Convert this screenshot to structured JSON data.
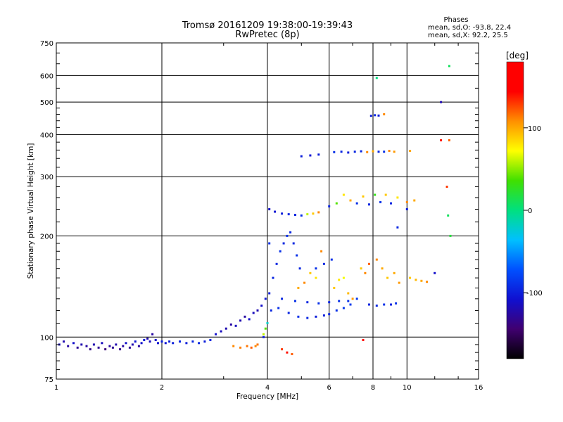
{
  "chart_data": {
    "type": "scatter",
    "title": "Tromsø 20161209 19:38:00-19:39:43",
    "subtitle": "RwPretec (8p)",
    "xlabel": "Frequency [MHz]",
    "ylabel": "Stationary phase Virtual Height [km]",
    "x_scale": "log",
    "y_scale": "log",
    "xlim": [
      1,
      16
    ],
    "ylim": [
      75,
      750
    ],
    "x_ticks": [
      1,
      2,
      4,
      6,
      8,
      10,
      16
    ],
    "y_ticks": [
      75,
      100,
      200,
      300,
      400,
      500,
      600,
      750
    ],
    "grid": true,
    "stats": {
      "header": "Phases",
      "line_o": "mean, sd,O: -93.8, 22.4",
      "line_x": "mean, sd,X:  92.2, 25.5"
    },
    "colorbar": {
      "label": "[deg]",
      "range": [
        -180,
        180
      ],
      "ticks": [
        100,
        0,
        -100
      ],
      "colormap": [
        "#000000",
        "#400070",
        "#1010d0",
        "#0050ff",
        "#00c0ff",
        "#00e080",
        "#40e000",
        "#ffff00",
        "#ff9000",
        "#ff0000",
        "#ff0000"
      ]
    },
    "series": [
      {
        "points": [
          [
            1.02,
            95,
            -115
          ],
          [
            1.05,
            97,
            -120
          ],
          [
            1.08,
            94,
            -125
          ],
          [
            1.12,
            96,
            -110
          ],
          [
            1.15,
            93,
            -130
          ],
          [
            1.18,
            95,
            -120
          ],
          [
            1.22,
            94,
            -125
          ],
          [
            1.25,
            92,
            -135
          ],
          [
            1.28,
            95,
            -120
          ],
          [
            1.32,
            93,
            -130
          ],
          [
            1.35,
            96,
            -115
          ],
          [
            1.38,
            92,
            -140
          ],
          [
            1.42,
            94,
            -125
          ],
          [
            1.45,
            93,
            -130
          ],
          [
            1.48,
            95,
            -120
          ],
          [
            1.52,
            92,
            -135
          ],
          [
            1.55,
            94,
            -125
          ],
          [
            1.58,
            96,
            -110
          ],
          [
            1.62,
            93,
            -130
          ],
          [
            1.65,
            95,
            -120
          ],
          [
            1.68,
            97,
            -105
          ],
          [
            1.72,
            94,
            -125
          ],
          [
            1.75,
            96,
            -110
          ],
          [
            1.78,
            98,
            -100
          ],
          [
            1.82,
            99,
            -120
          ],
          [
            1.85,
            97,
            -115
          ],
          [
            1.88,
            102,
            -125
          ],
          [
            1.92,
            98,
            -110
          ],
          [
            1.95,
            96,
            -105
          ],
          [
            2.0,
            97,
            -100
          ],
          [
            2.05,
            96,
            -105
          ],
          [
            2.1,
            97,
            -100
          ],
          [
            2.15,
            96,
            -100
          ],
          [
            2.25,
            97,
            -95
          ],
          [
            2.35,
            96,
            -100
          ],
          [
            2.45,
            97,
            -95
          ],
          [
            2.55,
            96,
            -95
          ],
          [
            2.65,
            97,
            -100
          ],
          [
            2.75,
            98,
            -95
          ],
          [
            2.85,
            102,
            -110
          ],
          [
            2.95,
            104,
            -115
          ],
          [
            3.05,
            106,
            -120
          ],
          [
            3.15,
            109,
            -125
          ],
          [
            3.25,
            108,
            -115
          ],
          [
            3.35,
            112,
            -120
          ],
          [
            3.45,
            115,
            -125
          ],
          [
            3.55,
            113,
            -110
          ],
          [
            3.65,
            118,
            -115
          ],
          [
            3.75,
            120,
            -120
          ],
          [
            3.85,
            124,
            -110
          ],
          [
            3.95,
            130,
            -105
          ],
          [
            4.05,
            135,
            -100
          ],
          [
            4.15,
            150,
            -95
          ],
          [
            4.25,
            165,
            -95
          ],
          [
            4.35,
            180,
            -90
          ],
          [
            4.45,
            190,
            -95
          ],
          [
            4.55,
            200,
            -90
          ],
          [
            4.65,
            205,
            -95
          ],
          [
            4.75,
            190,
            -95
          ],
          [
            4.85,
            175,
            -90
          ],
          [
            4.95,
            160,
            -95
          ],
          [
            4.05,
            190,
            -90
          ],
          [
            4.05,
            240,
            -110
          ],
          [
            4.2,
            236,
            -105
          ],
          [
            4.4,
            233,
            -100
          ],
          [
            4.6,
            232,
            -95
          ],
          [
            4.8,
            231,
            -95
          ],
          [
            5.0,
            230,
            -90
          ],
          [
            5.2,
            232,
            60
          ],
          [
            5.4,
            233,
            90
          ],
          [
            5.6,
            235,
            110
          ],
          [
            3.9,
            100,
            -100
          ],
          [
            4.1,
            120,
            -95
          ],
          [
            4.3,
            122,
            -90
          ],
          [
            4.6,
            118,
            -95
          ],
          [
            4.9,
            115,
            -90
          ],
          [
            5.2,
            114,
            -95
          ],
          [
            5.5,
            115,
            -100
          ],
          [
            5.8,
            116,
            -100
          ],
          [
            6.0,
            117,
            -95
          ],
          [
            6.3,
            120,
            -90
          ],
          [
            6.6,
            122,
            -85
          ],
          [
            6.9,
            125,
            -85
          ],
          [
            4.4,
            130,
            -95
          ],
          [
            4.8,
            128,
            -90
          ],
          [
            5.2,
            127,
            -95
          ],
          [
            5.6,
            126,
            -90
          ],
          [
            6.0,
            127,
            -95
          ],
          [
            6.4,
            128,
            -90
          ],
          [
            6.8,
            128,
            -90
          ],
          [
            7.2,
            130,
            -85
          ],
          [
            5.5,
            160,
            -90
          ],
          [
            5.8,
            165,
            -95
          ],
          [
            6.1,
            170,
            -90
          ],
          [
            3.2,
            94,
            110
          ],
          [
            3.35,
            93,
            112
          ],
          [
            3.5,
            94,
            115
          ],
          [
            3.6,
            93,
            120
          ],
          [
            3.7,
            94,
            110
          ],
          [
            3.75,
            95,
            115
          ],
          [
            4.4,
            92,
            130
          ],
          [
            4.55,
            90,
            140
          ],
          [
            4.7,
            89,
            120
          ],
          [
            3.9,
            102,
            60
          ],
          [
            3.95,
            106,
            40
          ],
          [
            4.0,
            110,
            -20
          ],
          [
            4.9,
            140,
            100
          ],
          [
            5.1,
            145,
            110
          ],
          [
            5.3,
            155,
            90
          ],
          [
            5.5,
            150,
            80
          ],
          [
            5.7,
            180,
            110
          ],
          [
            6.2,
            140,
            90
          ],
          [
            6.4,
            148,
            80
          ],
          [
            6.6,
            150,
            70
          ],
          [
            6.8,
            135,
            95
          ],
          [
            7.0,
            130,
            105
          ],
          [
            7.4,
            160,
            90
          ],
          [
            7.6,
            155,
            110
          ],
          [
            7.8,
            165,
            120
          ],
          [
            8.2,
            170,
            110
          ],
          [
            8.5,
            160,
            100
          ],
          [
            8.8,
            150,
            90
          ],
          [
            9.2,
            155,
            100
          ],
          [
            9.5,
            145,
            105
          ],
          [
            10.2,
            150,
            90
          ],
          [
            10.6,
            148,
            95
          ],
          [
            11.0,
            147,
            100
          ],
          [
            11.4,
            146,
            110
          ],
          [
            7.8,
            125,
            -95
          ],
          [
            8.2,
            124,
            -95
          ],
          [
            8.6,
            125,
            -90
          ],
          [
            9.0,
            125,
            -95
          ],
          [
            9.3,
            126,
            -90
          ],
          [
            6.2,
            355,
            -90
          ],
          [
            6.5,
            356,
            -95
          ],
          [
            6.8,
            354,
            -100
          ],
          [
            7.1,
            356,
            -95
          ],
          [
            7.4,
            357,
            -95
          ],
          [
            7.7,
            355,
            110
          ],
          [
            8.0,
            357,
            100
          ],
          [
            8.3,
            356,
            -95
          ],
          [
            8.6,
            356,
            -90
          ],
          [
            8.9,
            358,
            110
          ],
          [
            9.2,
            356,
            105
          ],
          [
            10.2,
            358,
            100
          ],
          [
            5.0,
            345,
            -100
          ],
          [
            5.3,
            347,
            -105
          ],
          [
            5.6,
            349,
            -100
          ],
          [
            6.0,
            245,
            -95
          ],
          [
            6.3,
            250,
            40
          ],
          [
            6.6,
            265,
            80
          ],
          [
            6.9,
            255,
            100
          ],
          [
            7.2,
            250,
            -90
          ],
          [
            7.5,
            262,
            90
          ],
          [
            7.8,
            248,
            -95
          ],
          [
            8.1,
            265,
            30
          ],
          [
            8.4,
            252,
            -90
          ],
          [
            8.7,
            265,
            90
          ],
          [
            9.0,
            250,
            -95
          ],
          [
            9.4,
            260,
            80
          ],
          [
            10.0,
            252,
            110
          ],
          [
            10.5,
            255,
            100
          ],
          [
            7.9,
            455,
            -100
          ],
          [
            8.1,
            457,
            -95
          ],
          [
            8.3,
            456,
            -100
          ],
          [
            8.6,
            460,
            110
          ],
          [
            8.2,
            590,
            0
          ],
          [
            12.5,
            500,
            -120
          ],
          [
            13.2,
            640,
            10
          ],
          [
            13.2,
            385,
            120
          ],
          [
            12.5,
            385,
            140
          ],
          [
            13.0,
            280,
            130
          ],
          [
            13.1,
            230,
            10
          ],
          [
            13.3,
            200,
            20
          ],
          [
            12.0,
            155,
            -110
          ],
          [
            9.4,
            212,
            -95
          ],
          [
            10.0,
            240,
            -100
          ],
          [
            7.5,
            98,
            140
          ]
        ]
      }
    ]
  }
}
